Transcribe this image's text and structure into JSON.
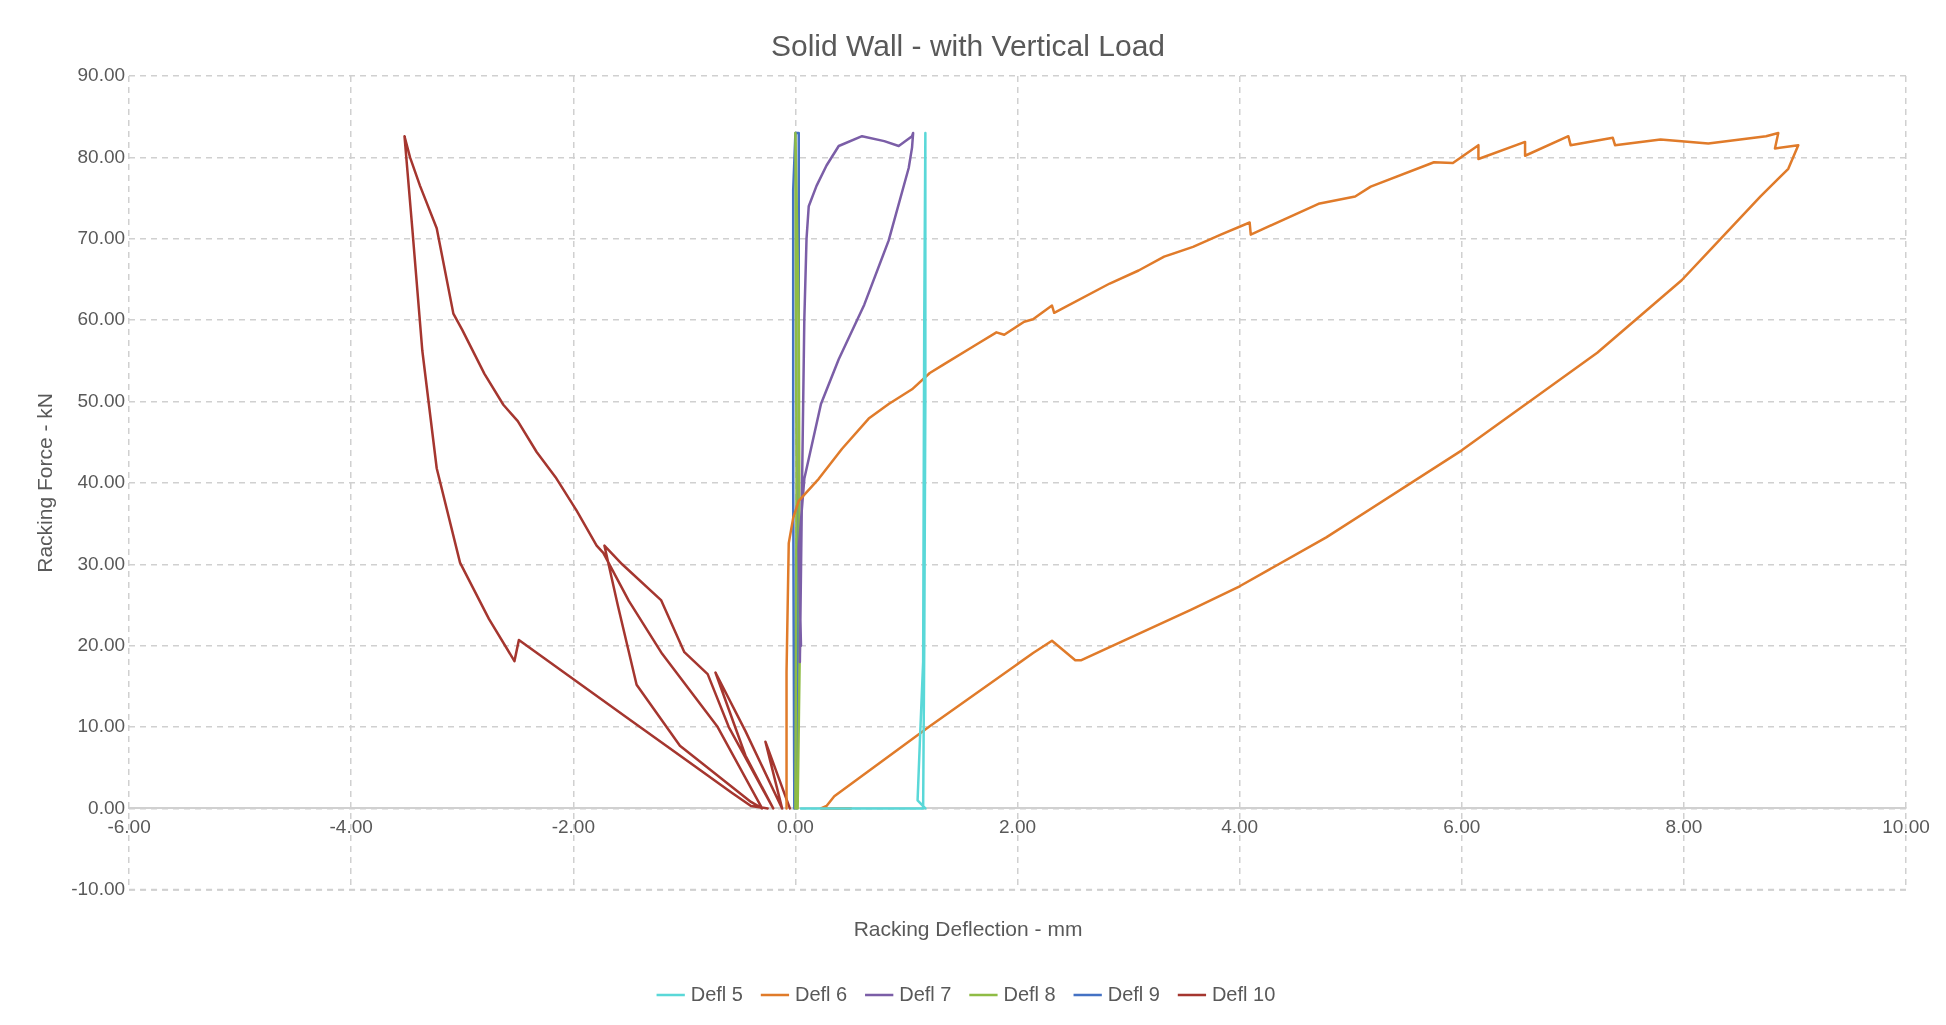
{
  "chart_data": {
    "type": "line",
    "title": "Solid Wall - with Vertical Load",
    "xlabel": "Racking Deflection - mm",
    "ylabel": "Racking Force - kN",
    "xlim": [
      -6,
      10
    ],
    "ylim": [
      -10,
      90
    ],
    "xticks": [
      {
        "value": -6,
        "label": "-6.00"
      },
      {
        "value": -4,
        "label": "-4.00"
      },
      {
        "value": -2,
        "label": "-2.00"
      },
      {
        "value": 0,
        "label": "0.00"
      },
      {
        "value": 2,
        "label": "2.00"
      },
      {
        "value": 4,
        "label": "4.00"
      },
      {
        "value": 6,
        "label": "6.00"
      },
      {
        "value": 8,
        "label": "8.00"
      },
      {
        "value": 10,
        "label": "10.00"
      }
    ],
    "yticks": [
      {
        "value": -10,
        "label": "-10.00"
      },
      {
        "value": 0,
        "label": "0.00"
      },
      {
        "value": 10,
        "label": "10.00"
      },
      {
        "value": 20,
        "label": "20.00"
      },
      {
        "value": 30,
        "label": "30.00"
      },
      {
        "value": 40,
        "label": "40.00"
      },
      {
        "value": 50,
        "label": "50.00"
      },
      {
        "value": 60,
        "label": "60.00"
      },
      {
        "value": 70,
        "label": "70.00"
      },
      {
        "value": 80,
        "label": "80.00"
      },
      {
        "value": 90,
        "label": "90.00"
      }
    ],
    "grid": true,
    "legend": "bottom",
    "marker": "none",
    "line_style": "solid",
    "series": [
      {
        "name": "Defl 5",
        "color": "#5ad8d8",
        "x": [
          0.05,
          1.15,
          1.16,
          1.17,
          1.17,
          1.16,
          1.15,
          1.12,
          1.1,
          1.17
        ],
        "values": [
          0,
          0,
          20,
          50,
          83,
          60,
          18,
          8,
          1,
          0
        ]
      },
      {
        "name": "Defl 6",
        "color": "#e07b2a",
        "x": [
          -0.08,
          -0.08,
          -0.06,
          -0.02,
          0.03,
          0.21,
          0.42,
          0.66,
          0.84,
          1.05,
          1.21,
          1.34,
          1.63,
          1.81,
          1.88,
          2.06,
          2.14,
          2.31,
          2.33,
          2.83,
          3.09,
          3.32,
          3.58,
          3.83,
          4.09,
          4.1,
          4.71,
          5.04,
          5.18,
          5.75,
          5.92,
          6.15,
          6.15,
          6.57,
          6.57,
          6.96,
          6.98,
          7.36,
          7.38,
          7.79,
          8.22,
          8.74,
          8.85,
          8.82,
          9.03,
          8.94,
          8.69,
          7.98,
          7.22,
          6.56,
          6.0,
          4.78,
          4.0,
          3.56,
          2.57,
          2.52,
          2.31,
          2.14,
          1.2,
          0.35,
          0.28,
          0.23,
          0.5
        ],
        "values": [
          0,
          16.8,
          32.6,
          35.7,
          37.8,
          40.5,
          44.2,
          47.9,
          49.7,
          51.5,
          53.5,
          54.6,
          57,
          58.5,
          58.2,
          59.8,
          60.1,
          61.8,
          60.9,
          64.5,
          66.1,
          67.8,
          69,
          70.5,
          72,
          70.5,
          74.3,
          75.2,
          76.4,
          79.4,
          79.3,
          81.5,
          79.8,
          81.9,
          80.2,
          82.6,
          81.5,
          82.4,
          81.5,
          82.2,
          81.7,
          82.6,
          83,
          81.1,
          81.5,
          78.6,
          75.2,
          64.9,
          56,
          49.5,
          44,
          33.3,
          27.3,
          24.4,
          18.2,
          18.2,
          20.6,
          19.1,
          10,
          1.5,
          0.3,
          0,
          0
        ]
      },
      {
        "name": "Defl 7",
        "color": "#7b5ea7",
        "x": [
          0.04,
          0.06,
          0.08,
          0.1,
          0.12,
          0.19,
          0.28,
          0.39,
          0.6,
          0.8,
          0.93,
          1.05,
          1.06,
          1.05,
          1.02,
          0.84,
          0.62,
          0.39,
          0.23,
          0.08,
          0.03,
          0.05
        ],
        "values": [
          18,
          40,
          60,
          70,
          74,
          76.5,
          79,
          81.4,
          82.6,
          82,
          81.4,
          82.6,
          83,
          81.2,
          78.7,
          69.8,
          61.9,
          55.2,
          49.7,
          40.5,
          32,
          20
        ]
      },
      {
        "name": "Defl 8",
        "color": "#8fbc45",
        "x": [
          0,
          0.01,
          0,
          0.03,
          0.04,
          0.02
        ],
        "values": [
          0,
          40,
          83,
          60,
          20,
          0
        ]
      },
      {
        "name": "Defl 9",
        "color": "#4472c4",
        "x": [
          -0.01,
          -0.02,
          -0.02,
          0,
          0.03,
          0.03,
          0.02,
          0.01
        ],
        "values": [
          0,
          40,
          76,
          83,
          83,
          50,
          18,
          0
        ]
      },
      {
        "name": "Defl 10",
        "color": "#a5362f",
        "x": [
          -0.05,
          -0.27,
          -0.12,
          -0.45,
          -0.72,
          -0.45,
          -0.2,
          -0.6,
          -0.79,
          -1.0,
          -1.21,
          -1.56,
          -1.72,
          -1.6,
          -1.43,
          -1.04,
          -0.4,
          -0.3,
          -0.7,
          -1.2,
          -1.5,
          -1.73,
          -1.79,
          -1.97,
          -2.16,
          -2.33,
          -2.5,
          -2.63,
          -2.8,
          -3.0,
          -3.08,
          -3.23,
          -3.38,
          -3.47,
          -3.52,
          -3.45,
          -3.36,
          -3.23,
          -3.02,
          -2.76,
          -2.53,
          -2.49,
          -1.5,
          -0.57,
          -0.4,
          -0.25
        ],
        "values": [
          0,
          8.2,
          0,
          9.5,
          16.7,
          6.5,
          0,
          10,
          16.5,
          19.2,
          25.6,
          30,
          32.3,
          25,
          15.2,
          7.7,
          0.8,
          0,
          10,
          19,
          25.5,
          31.4,
          32.3,
          36.6,
          40.7,
          43.8,
          47.6,
          49.6,
          53.4,
          58.8,
          60.8,
          71.3,
          76.5,
          80,
          82.6,
          71.3,
          56.3,
          41.8,
          30.2,
          23.3,
          18.1,
          20.7,
          11,
          1.9,
          0.3,
          0
        ]
      }
    ]
  }
}
